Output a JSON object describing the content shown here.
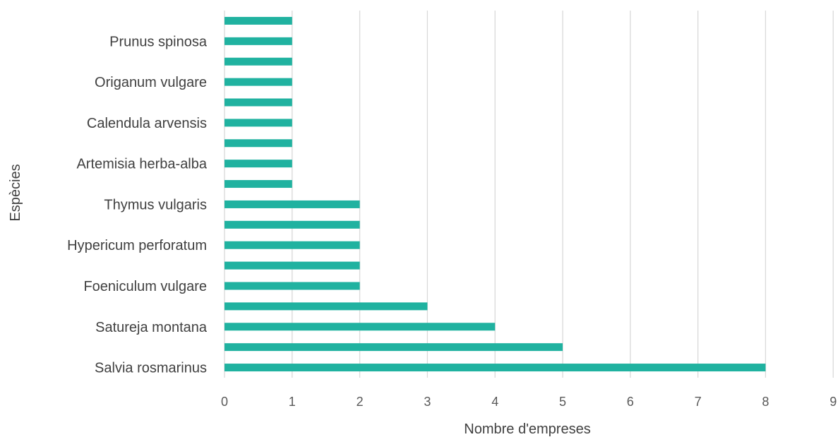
{
  "chart_data": {
    "type": "bar",
    "orientation": "horizontal",
    "categories": [
      "Salvia rosmarinus",
      "",
      "Satureja montana",
      "",
      "Foeniculum vulgare",
      "",
      "Hypericum perforatum",
      "",
      "Thymus vulgaris",
      "",
      "Artemisia herba-alba",
      "",
      "Calendula arvensis",
      "",
      "Origanum vulgare",
      "",
      "Prunus spinosa",
      ""
    ],
    "values": [
      8,
      5,
      4,
      3,
      2,
      2,
      2,
      2,
      2,
      1,
      1,
      1,
      1,
      1,
      1,
      1,
      1,
      1
    ],
    "xlabel": "Nombre d'empreses",
    "ylabel": "Espècies",
    "xlim": [
      0,
      9
    ],
    "xticks": [
      "0",
      "1",
      "2",
      "3",
      "4",
      "5",
      "6",
      "7",
      "8",
      "9"
    ],
    "grid": "vertical",
    "bar_color": "#20B2A0",
    "legend": "none"
  }
}
